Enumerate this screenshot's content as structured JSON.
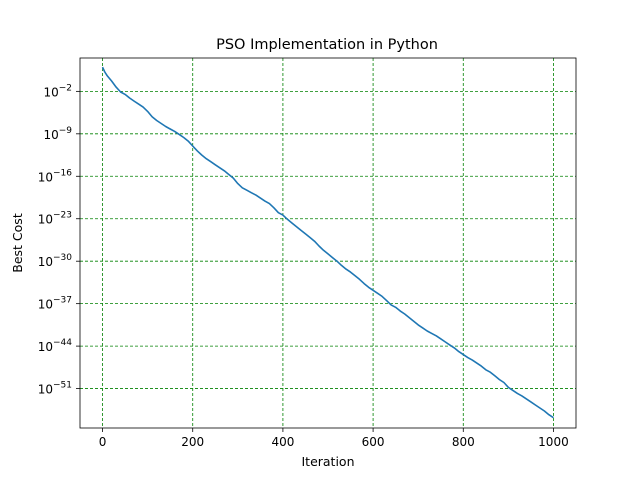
{
  "chart_data": {
    "type": "line",
    "title": "PSO Implementation in Python",
    "xlabel": "Iteration",
    "ylabel": "Best Cost",
    "xlim": [
      -50,
      1050
    ],
    "ylim_log10": [
      -57.5,
      3.5
    ],
    "yscale": "log",
    "x_ticks": [
      0,
      200,
      400,
      600,
      800,
      1000
    ],
    "x_tick_labels": [
      "0",
      "200",
      "400",
      "600",
      "800",
      "1000"
    ],
    "y_ticks_log10": [
      -2,
      -9,
      -16,
      -23,
      -30,
      -37,
      -44,
      -51
    ],
    "y_tick_labels": [
      {
        "base": "10",
        "exp": "−2"
      },
      {
        "base": "10",
        "exp": "−9"
      },
      {
        "base": "10",
        "exp": "−16"
      },
      {
        "base": "10",
        "exp": "−23"
      },
      {
        "base": "10",
        "exp": "−30"
      },
      {
        "base": "10",
        "exp": "−37"
      },
      {
        "base": "10",
        "exp": "−44"
      },
      {
        "base": "10",
        "exp": "−51"
      }
    ],
    "grid": true,
    "grid_color": "#008000",
    "line_color": "#1f77b4",
    "series": [
      {
        "name": "",
        "x": [
          0,
          5,
          10,
          20,
          30,
          40,
          50,
          60,
          70,
          80,
          90,
          100,
          110,
          120,
          130,
          140,
          150,
          160,
          170,
          180,
          190,
          200,
          210,
          220,
          230,
          240,
          250,
          260,
          270,
          280,
          290,
          300,
          310,
          320,
          330,
          340,
          350,
          360,
          370,
          380,
          390,
          400,
          410,
          420,
          430,
          440,
          450,
          460,
          470,
          480,
          490,
          500,
          510,
          520,
          530,
          540,
          550,
          560,
          570,
          580,
          590,
          600,
          610,
          620,
          630,
          640,
          650,
          660,
          670,
          680,
          690,
          700,
          710,
          720,
          730,
          740,
          750,
          760,
          770,
          780,
          790,
          800,
          810,
          820,
          830,
          840,
          850,
          860,
          870,
          880,
          890,
          900,
          910,
          920,
          930,
          940,
          950,
          960,
          970,
          980,
          990,
          1000
        ],
        "y_log10": [
          2.0,
          1.2,
          0.6,
          -0.3,
          -1.3,
          -2.1,
          -2.5,
          -3.1,
          -3.6,
          -4.1,
          -4.6,
          -5.3,
          -6.2,
          -6.8,
          -7.3,
          -7.8,
          -8.2,
          -8.6,
          -9.1,
          -9.6,
          -10.2,
          -11.0,
          -11.8,
          -12.5,
          -13.1,
          -13.6,
          -14.1,
          -14.6,
          -15.1,
          -15.7,
          -16.3,
          -17.2,
          -17.9,
          -18.3,
          -18.7,
          -19.1,
          -19.6,
          -20.1,
          -20.5,
          -21.2,
          -22.0,
          -22.4,
          -23.1,
          -23.7,
          -24.3,
          -24.9,
          -25.5,
          -26.1,
          -26.7,
          -27.5,
          -28.2,
          -28.8,
          -29.4,
          -30.0,
          -30.7,
          -31.3,
          -31.8,
          -32.4,
          -33.0,
          -33.7,
          -34.3,
          -34.8,
          -35.3,
          -35.8,
          -36.5,
          -37.2,
          -37.6,
          -38.2,
          -38.7,
          -39.3,
          -39.9,
          -40.5,
          -41.0,
          -41.5,
          -41.9,
          -42.3,
          -42.8,
          -43.3,
          -43.8,
          -44.3,
          -44.9,
          -45.4,
          -45.9,
          -46.3,
          -46.8,
          -47.3,
          -47.9,
          -48.3,
          -48.9,
          -49.5,
          -50.0,
          -50.8,
          -51.3,
          -51.8,
          -52.2,
          -52.7,
          -53.2,
          -53.7,
          -54.2,
          -54.7,
          -55.3,
          -55.8
        ]
      }
    ]
  }
}
